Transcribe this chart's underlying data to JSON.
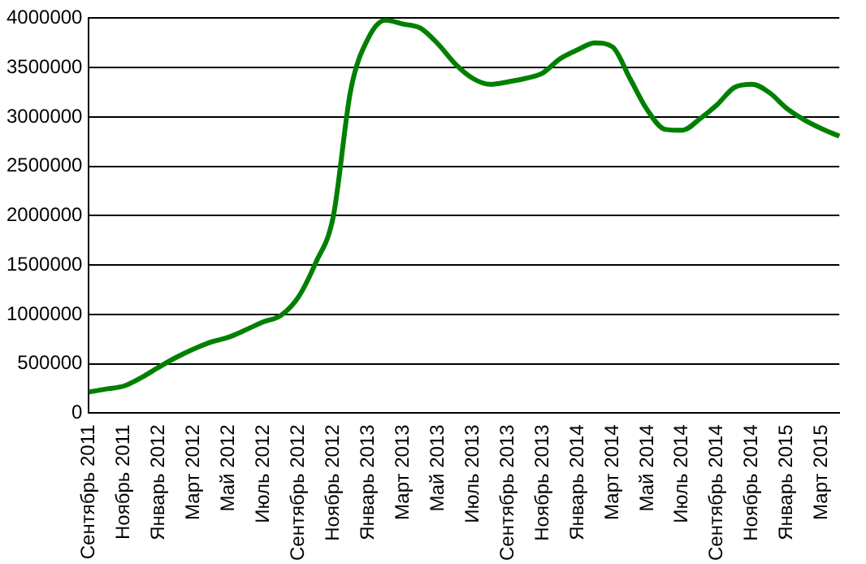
{
  "chart_data": {
    "type": "line",
    "categories": [
      "Сентябрь 2011",
      null,
      "Ноябрь 2011",
      null,
      "Январь 2012",
      null,
      "Март 2012",
      null,
      "Май 2012",
      null,
      "Июль 2012",
      null,
      "Сентябрь 2012",
      null,
      "Ноябрь 2012",
      null,
      "Январь 2013",
      null,
      "Март 2013",
      null,
      "Май 2013",
      null,
      "Июль 2013",
      null,
      "Сентябрь 2013",
      null,
      "Ноябрь 2013",
      null,
      "Январь 2014",
      null,
      "Март 2014",
      null,
      "Май 2014",
      null,
      "Июль 2014",
      null,
      "Сентябрь 2014",
      null,
      "Ноябрь 2014",
      null,
      "Январь 2015",
      null,
      "Март 2015",
      null
    ],
    "series": [
      {
        "color": "#008000",
        "values": [
          215000,
          245000,
          275000,
          360000,
          465000,
          565000,
          650000,
          720000,
          770000,
          845000,
          925000,
          990000,
          1175000,
          1525000,
          1990000,
          3270000,
          3795000,
          3980000,
          3940000,
          3900000,
          3740000,
          3535000,
          3390000,
          3330000,
          3355000,
          3390000,
          3445000,
          3590000,
          3680000,
          3750000,
          3710000,
          3390000,
          3070000,
          2875000,
          2865000,
          2980000,
          3125000,
          3300000,
          3330000,
          3245000,
          3085000,
          2970000,
          2880000,
          2805000
        ]
      }
    ],
    "ylim": [
      0,
      4000000
    ],
    "yticks": [
      0,
      500000,
      1000000,
      1500000,
      2000000,
      2500000,
      3000000,
      3500000,
      4000000
    ],
    "grid": "y",
    "legend": false,
    "marker": "none",
    "line_style": "solid"
  }
}
